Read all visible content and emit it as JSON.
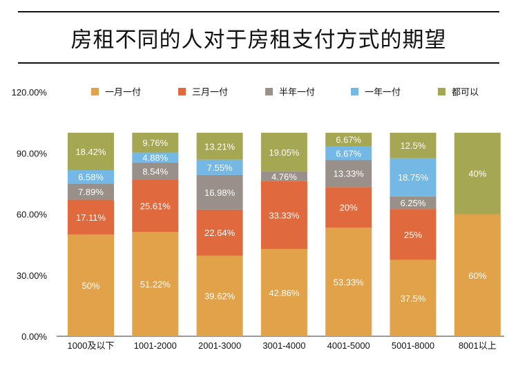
{
  "title": "房租不同的人对于房租支付方式的期望",
  "chart_data": {
    "type": "bar",
    "stacked": true,
    "categories": [
      "1000及以下",
      "1001-2000",
      "2001-3000",
      "3001-4000",
      "4001-5000",
      "5001-8000",
      "8001以上"
    ],
    "series": [
      {
        "name": "一月一付",
        "color": "#E1A24A",
        "values": [
          50,
          51.22,
          39.62,
          42.86,
          53.33,
          37.5,
          60
        ],
        "labels": [
          "50%",
          "51.22%",
          "39.62%",
          "42.86%",
          "53.33%",
          "37.5%",
          "60%"
        ]
      },
      {
        "name": "三月一付",
        "color": "#E0693E",
        "values": [
          17.11,
          25.61,
          22.64,
          33.33,
          20,
          25,
          0
        ],
        "labels": [
          "17.11%",
          "25.61%",
          "22.64%",
          "33.33%",
          "20%",
          "25%",
          ""
        ]
      },
      {
        "name": "半年一付",
        "color": "#999089",
        "values": [
          7.89,
          8.54,
          16.98,
          4.76,
          13.33,
          6.25,
          0
        ],
        "labels": [
          "7.89%",
          "8.54%",
          "16.98%",
          "4.76%",
          "13.33%",
          "6.25%",
          ""
        ]
      },
      {
        "name": "一年一付",
        "color": "#74B8E6",
        "values": [
          6.58,
          4.88,
          7.55,
          0,
          6.67,
          18.75,
          0
        ],
        "labels": [
          "6.58%",
          "4.88%",
          "7.55%",
          "",
          "6.67%",
          "18.75%",
          ""
        ]
      },
      {
        "name": "都可以",
        "color": "#A6A752",
        "values": [
          18.42,
          9.76,
          13.21,
          19.05,
          6.67,
          12.5,
          40
        ],
        "labels": [
          "18.42%",
          "9.76%",
          "13.21%",
          "19.05%",
          "6.67%",
          "12.5%",
          "40%"
        ]
      }
    ],
    "yticks": [
      "0.00%",
      "30.00%",
      "60.00%",
      "90.00%",
      "120.00%"
    ],
    "ylim": [
      0,
      120
    ],
    "legend_position": "top",
    "grid": false
  }
}
